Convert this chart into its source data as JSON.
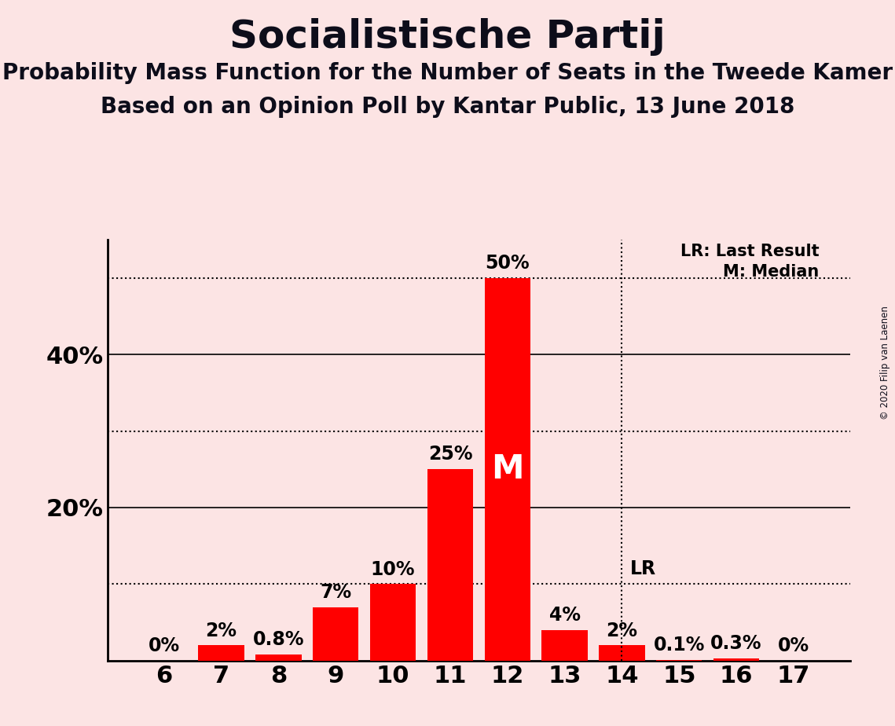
{
  "title": "Socialistische Partij",
  "subtitle1": "Probability Mass Function for the Number of Seats in the Tweede Kamer",
  "subtitle2": "Based on an Opinion Poll by Kantar Public, 13 June 2018",
  "copyright": "© 2020 Filip van Laenen",
  "categories": [
    6,
    7,
    8,
    9,
    10,
    11,
    12,
    13,
    14,
    15,
    16,
    17
  ],
  "values": [
    0.0,
    2.0,
    0.8,
    7.0,
    10.0,
    25.0,
    50.0,
    4.0,
    2.0,
    0.1,
    0.3,
    0.0
  ],
  "bar_color": "#ff0000",
  "background_color": "#fce4e4",
  "ylim": [
    0,
    55
  ],
  "dotted_lines": [
    10,
    30,
    50
  ],
  "solid_lines": [
    20,
    40
  ],
  "median_seat": 12,
  "last_result_seat": 14,
  "median_label": "M",
  "last_result_label": "LR",
  "legend_lr": "LR: Last Result",
  "legend_m": "M: Median",
  "bar_labels": [
    "0%",
    "2%",
    "0.8%",
    "7%",
    "10%",
    "25%",
    "50%",
    "4%",
    "2%",
    "0.1%",
    "0.3%",
    "0%"
  ],
  "ytick_positions": [
    20,
    40
  ],
  "ytick_labels": [
    "20%",
    "40%"
  ],
  "label_fontsize": 17,
  "title_fontsize": 36,
  "subtitle_fontsize": 20,
  "axis_fontsize": 22,
  "legend_fontsize": 15
}
